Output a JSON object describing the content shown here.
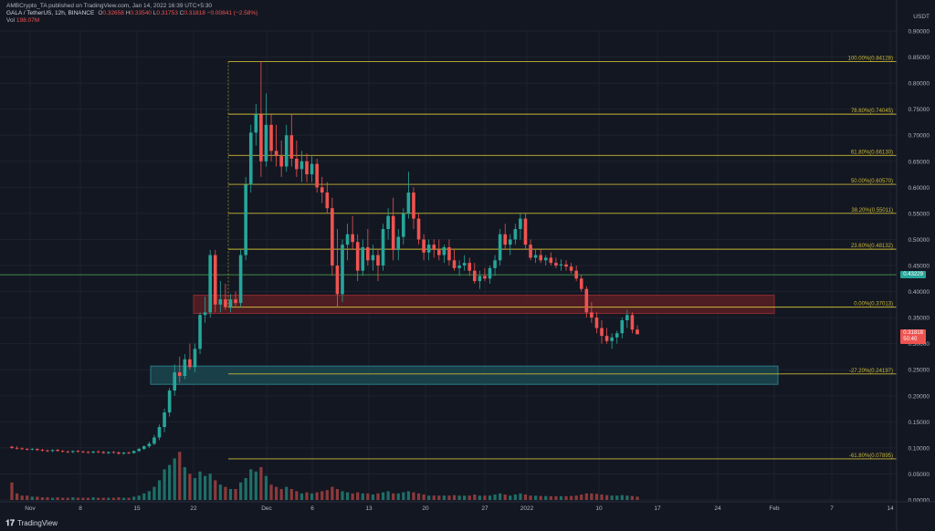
{
  "header": {
    "published": "AMBCrypto_TA published on TradingView.com, Jan 14, 2022 16:39 UTC+5:30",
    "symbol": "GALA / TetherUS, 12h, BINANCE",
    "ohlc": {
      "o_label": "O",
      "o": "0.32658",
      "h_label": "H",
      "h": "0.33540",
      "l_label": "L",
      "l": "0.31753",
      "c_label": "C",
      "c": "0.31818",
      "change": "−0.00841 (−2.58%)"
    },
    "vol_label": "Vol",
    "vol": "198.07M"
  },
  "axis": {
    "currency": "USDT",
    "price_ticks": [
      "0.90000",
      "0.85000",
      "0.80000",
      "0.75000",
      "0.70000",
      "0.65000",
      "0.60000",
      "0.55000",
      "0.50000",
      "0.45000",
      "0.40000",
      "0.35000",
      "0.30000",
      "0.25000",
      "0.20000",
      "0.15000",
      "0.10000",
      "0.05000",
      "0.00000"
    ],
    "date_ticks": [
      "Nov",
      "8",
      "15",
      "22",
      "Dec",
      "6",
      "13",
      "20",
      "27",
      "2022",
      "10",
      "17",
      "24",
      "Feb",
      "7",
      "14"
    ],
    "last_price_tag": "0.31818",
    "countdown": "50:40",
    "level_tag": "0.43229"
  },
  "fib_levels": [
    {
      "label": "100.00%(0.84128)",
      "value": 0.84128
    },
    {
      "label": "78.60%(0.74045)",
      "value": 0.74045
    },
    {
      "label": "61.80%(0.66130)",
      "value": 0.6613
    },
    {
      "label": "50.00%(0.60570)",
      "value": 0.6057
    },
    {
      "label": "38.20%(0.55011)",
      "value": 0.55011
    },
    {
      "label": "23.60%(0.48132)",
      "value": 0.48132
    },
    {
      "label": "0.00%(0.37013)",
      "value": 0.37013
    },
    {
      "label": "-27.20%(0.24197)",
      "value": 0.24197
    },
    {
      "label": "-61.80%(0.07895)",
      "value": 0.07895
    }
  ],
  "colors": {
    "up": "#26a69a",
    "down": "#ef5350",
    "fib": "#c9b735",
    "level": "#2e7d32",
    "zone_red": "#5c1f24",
    "zone_teal": "#1b4a53",
    "bg": "#131722"
  },
  "chart_data": {
    "type": "candlestick",
    "ylim": [
      0,
      0.9
    ],
    "horizontal_level": 0.43229,
    "zones": [
      {
        "name": "resistance",
        "low": 0.358,
        "high": 0.393
      },
      {
        "name": "support",
        "low": 0.222,
        "high": 0.257
      }
    ],
    "candles": [
      [
        0.102,
        0.104,
        0.098,
        0.1
      ],
      [
        0.1,
        0.103,
        0.097,
        0.099
      ],
      [
        0.099,
        0.101,
        0.096,
        0.098
      ],
      [
        0.098,
        0.1,
        0.095,
        0.097
      ],
      [
        0.097,
        0.1,
        0.095,
        0.098
      ],
      [
        0.098,
        0.099,
        0.094,
        0.096
      ],
      [
        0.096,
        0.098,
        0.093,
        0.095
      ],
      [
        0.095,
        0.097,
        0.092,
        0.094
      ],
      [
        0.094,
        0.097,
        0.092,
        0.096
      ],
      [
        0.096,
        0.098,
        0.093,
        0.094
      ],
      [
        0.094,
        0.096,
        0.091,
        0.093
      ],
      [
        0.093,
        0.095,
        0.09,
        0.092
      ],
      [
        0.092,
        0.095,
        0.09,
        0.094
      ],
      [
        0.094,
        0.096,
        0.091,
        0.093
      ],
      [
        0.093,
        0.095,
        0.09,
        0.092
      ],
      [
        0.092,
        0.094,
        0.089,
        0.091
      ],
      [
        0.091,
        0.094,
        0.089,
        0.093
      ],
      [
        0.093,
        0.095,
        0.09,
        0.092
      ],
      [
        0.092,
        0.094,
        0.089,
        0.09
      ],
      [
        0.09,
        0.093,
        0.088,
        0.092
      ],
      [
        0.092,
        0.094,
        0.089,
        0.091
      ],
      [
        0.091,
        0.093,
        0.087,
        0.089
      ],
      [
        0.089,
        0.092,
        0.087,
        0.091
      ],
      [
        0.091,
        0.093,
        0.088,
        0.09
      ],
      [
        0.09,
        0.095,
        0.089,
        0.094
      ],
      [
        0.094,
        0.1,
        0.092,
        0.098
      ],
      [
        0.098,
        0.105,
        0.096,
        0.103
      ],
      [
        0.103,
        0.112,
        0.1,
        0.108
      ],
      [
        0.108,
        0.125,
        0.105,
        0.12
      ],
      [
        0.12,
        0.145,
        0.115,
        0.14
      ],
      [
        0.14,
        0.175,
        0.13,
        0.168
      ],
      [
        0.168,
        0.215,
        0.16,
        0.21
      ],
      [
        0.21,
        0.26,
        0.2,
        0.245
      ],
      [
        0.245,
        0.275,
        0.225,
        0.238
      ],
      [
        0.238,
        0.28,
        0.232,
        0.27
      ],
      [
        0.27,
        0.3,
        0.25,
        0.255
      ],
      [
        0.255,
        0.3,
        0.245,
        0.29
      ],
      [
        0.29,
        0.36,
        0.28,
        0.355
      ],
      [
        0.355,
        0.39,
        0.34,
        0.36
      ],
      [
        0.36,
        0.48,
        0.35,
        0.47
      ],
      [
        0.47,
        0.48,
        0.36,
        0.375
      ],
      [
        0.375,
        0.42,
        0.36,
        0.385
      ],
      [
        0.385,
        0.415,
        0.365,
        0.37
      ],
      [
        0.37,
        0.395,
        0.36,
        0.385
      ],
      [
        0.385,
        0.4,
        0.372,
        0.378
      ],
      [
        0.378,
        0.48,
        0.37,
        0.47
      ],
      [
        0.47,
        0.62,
        0.46,
        0.605
      ],
      [
        0.605,
        0.72,
        0.59,
        0.705
      ],
      [
        0.705,
        0.76,
        0.68,
        0.74
      ],
      [
        0.74,
        0.841,
        0.62,
        0.65
      ],
      [
        0.65,
        0.78,
        0.64,
        0.72
      ],
      [
        0.72,
        0.74,
        0.65,
        0.67
      ],
      [
        0.67,
        0.72,
        0.64,
        0.66
      ],
      [
        0.66,
        0.69,
        0.62,
        0.64
      ],
      [
        0.64,
        0.72,
        0.63,
        0.7
      ],
      [
        0.7,
        0.74,
        0.64,
        0.655
      ],
      [
        0.655,
        0.69,
        0.62,
        0.635
      ],
      [
        0.635,
        0.67,
        0.61,
        0.65
      ],
      [
        0.65,
        0.665,
        0.61,
        0.625
      ],
      [
        0.625,
        0.66,
        0.61,
        0.645
      ],
      [
        0.645,
        0.655,
        0.59,
        0.6
      ],
      [
        0.6,
        0.62,
        0.57,
        0.59
      ],
      [
        0.59,
        0.61,
        0.55,
        0.56
      ],
      [
        0.56,
        0.58,
        0.43,
        0.45
      ],
      [
        0.45,
        0.52,
        0.37,
        0.395
      ],
      [
        0.395,
        0.5,
        0.38,
        0.49
      ],
      [
        0.49,
        0.53,
        0.46,
        0.51
      ],
      [
        0.51,
        0.545,
        0.48,
        0.495
      ],
      [
        0.495,
        0.51,
        0.42,
        0.44
      ],
      [
        0.44,
        0.5,
        0.43,
        0.485
      ],
      [
        0.485,
        0.52,
        0.45,
        0.46
      ],
      [
        0.46,
        0.49,
        0.44,
        0.47
      ],
      [
        0.47,
        0.48,
        0.42,
        0.45
      ],
      [
        0.45,
        0.53,
        0.44,
        0.52
      ],
      [
        0.52,
        0.56,
        0.5,
        0.545
      ],
      [
        0.545,
        0.58,
        0.46,
        0.48
      ],
      [
        0.48,
        0.52,
        0.46,
        0.505
      ],
      [
        0.505,
        0.56,
        0.49,
        0.55
      ],
      [
        0.55,
        0.63,
        0.54,
        0.59
      ],
      [
        0.59,
        0.6,
        0.52,
        0.54
      ],
      [
        0.54,
        0.55,
        0.49,
        0.5
      ],
      [
        0.5,
        0.51,
        0.46,
        0.475
      ],
      [
        0.475,
        0.5,
        0.46,
        0.49
      ],
      [
        0.49,
        0.5,
        0.465,
        0.48
      ],
      [
        0.48,
        0.5,
        0.46,
        0.47
      ],
      [
        0.47,
        0.49,
        0.455,
        0.485
      ],
      [
        0.485,
        0.5,
        0.45,
        0.46
      ],
      [
        0.46,
        0.48,
        0.44,
        0.445
      ],
      [
        0.445,
        0.46,
        0.43,
        0.45
      ],
      [
        0.45,
        0.47,
        0.44,
        0.455
      ],
      [
        0.455,
        0.465,
        0.43,
        0.44
      ],
      [
        0.44,
        0.455,
        0.415,
        0.42
      ],
      [
        0.42,
        0.44,
        0.405,
        0.43
      ],
      [
        0.43,
        0.445,
        0.42,
        0.425
      ],
      [
        0.425,
        0.45,
        0.415,
        0.445
      ],
      [
        0.445,
        0.47,
        0.43,
        0.46
      ],
      [
        0.46,
        0.52,
        0.45,
        0.51
      ],
      [
        0.51,
        0.53,
        0.48,
        0.49
      ],
      [
        0.49,
        0.51,
        0.47,
        0.5
      ],
      [
        0.5,
        0.53,
        0.49,
        0.52
      ],
      [
        0.52,
        0.55,
        0.5,
        0.54
      ],
      [
        0.54,
        0.55,
        0.48,
        0.49
      ],
      [
        0.49,
        0.5,
        0.46,
        0.465
      ],
      [
        0.465,
        0.48,
        0.455,
        0.47
      ],
      [
        0.47,
        0.48,
        0.455,
        0.46
      ],
      [
        0.46,
        0.47,
        0.45,
        0.465
      ],
      [
        0.465,
        0.475,
        0.45,
        0.455
      ],
      [
        0.455,
        0.465,
        0.445,
        0.45
      ],
      [
        0.45,
        0.462,
        0.44,
        0.452
      ],
      [
        0.452,
        0.46,
        0.44,
        0.448
      ],
      [
        0.448,
        0.455,
        0.435,
        0.44
      ],
      [
        0.44,
        0.45,
        0.42,
        0.425
      ],
      [
        0.425,
        0.432,
        0.4,
        0.405
      ],
      [
        0.405,
        0.41,
        0.35,
        0.36
      ],
      [
        0.36,
        0.38,
        0.34,
        0.35
      ],
      [
        0.35,
        0.36,
        0.32,
        0.33
      ],
      [
        0.33,
        0.345,
        0.3,
        0.315
      ],
      [
        0.315,
        0.33,
        0.3,
        0.305
      ],
      [
        0.305,
        0.32,
        0.29,
        0.312
      ],
      [
        0.312,
        0.325,
        0.3,
        0.32
      ],
      [
        0.32,
        0.35,
        0.31,
        0.345
      ],
      [
        0.345,
        0.365,
        0.33,
        0.355
      ],
      [
        0.355,
        0.36,
        0.32,
        0.327
      ],
      [
        0.327,
        0.335,
        0.318,
        0.318
      ]
    ],
    "volumes": [
      0.08,
      0.03,
      0.02,
      0.02,
      0.015,
      0.015,
      0.012,
      0.012,
      0.01,
      0.012,
      0.01,
      0.01,
      0.012,
      0.01,
      0.01,
      0.01,
      0.012,
      0.01,
      0.01,
      0.01,
      0.01,
      0.012,
      0.01,
      0.01,
      0.015,
      0.02,
      0.03,
      0.04,
      0.06,
      0.09,
      0.14,
      0.16,
      0.19,
      0.22,
      0.15,
      0.12,
      0.1,
      0.13,
      0.11,
      0.12,
      0.09,
      0.07,
      0.06,
      0.05,
      0.05,
      0.08,
      0.1,
      0.14,
      0.13,
      0.15,
      0.11,
      0.07,
      0.06,
      0.05,
      0.06,
      0.05,
      0.04,
      0.03,
      0.035,
      0.03,
      0.035,
      0.04,
      0.045,
      0.06,
      0.05,
      0.04,
      0.035,
      0.03,
      0.035,
      0.03,
      0.03,
      0.025,
      0.03,
      0.035,
      0.04,
      0.03,
      0.03,
      0.035,
      0.04,
      0.035,
      0.03,
      0.025,
      0.02,
      0.02,
      0.02,
      0.02,
      0.02,
      0.022,
      0.02,
      0.02,
      0.02,
      0.025,
      0.02,
      0.02,
      0.02,
      0.025,
      0.03,
      0.025,
      0.02,
      0.025,
      0.03,
      0.025,
      0.02,
      0.02,
      0.018,
      0.018,
      0.017,
      0.017,
      0.017,
      0.017,
      0.018,
      0.02,
      0.025,
      0.03,
      0.03,
      0.028,
      0.025,
      0.022,
      0.02,
      0.02,
      0.022,
      0.02,
      0.018,
      0.015
    ]
  },
  "footer": {
    "brand": "TradingView"
  }
}
